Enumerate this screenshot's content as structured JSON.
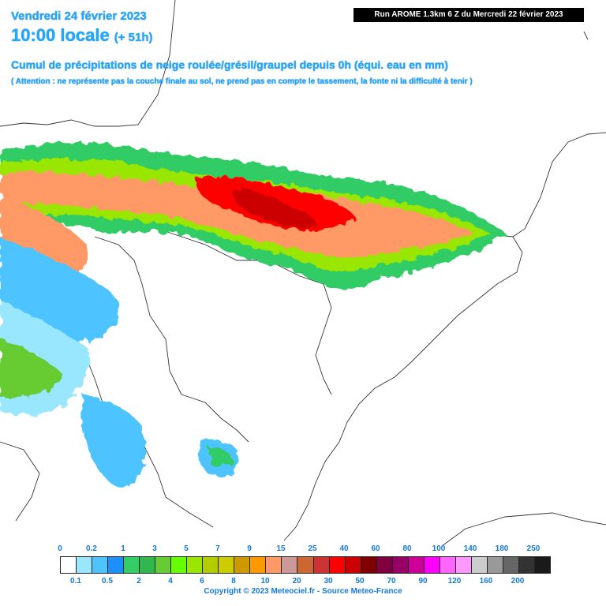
{
  "header": {
    "date": "Vendredi 24 février 2023",
    "time": "10:00 locale",
    "lead": "(+ 51h)",
    "title": "Cumul de précipitations de neige roulée/grésil/graupel depuis 0h (équi. eau en mm)",
    "note": "( Attention : ne représente pas la couche finale au sol, ne prend pas en compte le tassement, la fonte ni la difficulté à tenir )"
  },
  "run_info": "Run AROME 1.3km 6 Z du Mercredi 22 février 2023",
  "legend": {
    "top_labels": [
      "0",
      "0.2",
      "1",
      "3",
      "5",
      "7",
      "9",
      "15",
      "25",
      "40",
      "60",
      "80",
      "100",
      "140",
      "180",
      "250"
    ],
    "bottom_labels": [
      "0.1",
      "0.5",
      "2",
      "4",
      "6",
      "8",
      "10",
      "20",
      "30",
      "50",
      "70",
      "90",
      "120",
      "160",
      "200"
    ],
    "colors": [
      "#ffffff",
      "#99e6ff",
      "#4dc3ff",
      "#1e8fff",
      "#33cc66",
      "#2eb84d",
      "#66cc33",
      "#66ff00",
      "#99e600",
      "#b3cc00",
      "#cccc00",
      "#cc9900",
      "#ff9900",
      "#ff9966",
      "#cc9999",
      "#cc6633",
      "#cc3333",
      "#ff0000",
      "#cc0000",
      "#800000",
      "#800040",
      "#990066",
      "#cc0099",
      "#ff00ff",
      "#ff66ff",
      "#ff99ff",
      "#cccccc",
      "#999999",
      "#666666",
      "#333333",
      "#1a1a1a"
    ]
  },
  "copyright": "Copyright © 2023 Meteociel.fr - Source Meteo-France"
}
